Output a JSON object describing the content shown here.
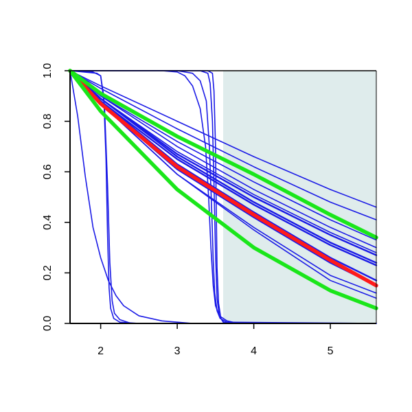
{
  "chart_data": {
    "type": "line",
    "title": "",
    "xlabel": "",
    "ylabel": "",
    "xlim": [
      1.6,
      5.6
    ],
    "ylim": [
      0.0,
      1.0
    ],
    "x_ticks": [
      2,
      3,
      4,
      5
    ],
    "x_tick_labels": [
      "2",
      "3",
      "4",
      "5"
    ],
    "y_ticks": [
      0.0,
      0.2,
      0.4,
      0.6,
      0.8,
      1.0
    ],
    "y_tick_labels": [
      "0.0",
      "0.2",
      "0.4",
      "0.6",
      "0.8",
      "1.0"
    ],
    "grid": false,
    "legend": "none",
    "shaded_region": {
      "x_from": 3.6,
      "x_to": 5.6,
      "color": "#dfecec"
    },
    "colors": {
      "blue": "#1a1ae6",
      "red": "#ff1a1a",
      "green": "#1ae61a",
      "axis": "#000000"
    },
    "series": [
      {
        "color": "blue",
        "weight": "thin",
        "x": [
          1.6,
          2.0,
          3.0,
          4.0,
          5.0,
          5.6
        ],
        "y": [
          1.0,
          0.94,
          0.8,
          0.66,
          0.53,
          0.46
        ]
      },
      {
        "color": "blue",
        "weight": "thin",
        "x": [
          1.6,
          2.0,
          3.0,
          4.0,
          5.0,
          5.6
        ],
        "y": [
          1.0,
          0.93,
          0.77,
          0.62,
          0.48,
          0.41
        ]
      },
      {
        "color": "blue",
        "weight": "thin",
        "x": [
          1.6,
          2.0,
          3.0,
          4.0,
          5.0,
          5.6
        ],
        "y": [
          1.0,
          0.9,
          0.72,
          0.56,
          0.41,
          0.33
        ]
      },
      {
        "color": "blue",
        "weight": "thin",
        "x": [
          1.6,
          2.0,
          3.0,
          4.0,
          5.0,
          5.6
        ],
        "y": [
          1.0,
          0.9,
          0.7,
          0.53,
          0.38,
          0.3
        ]
      },
      {
        "color": "blue",
        "weight": "thin",
        "x": [
          1.6,
          2.0,
          3.0,
          4.0,
          5.0,
          5.6
        ],
        "y": [
          1.0,
          0.89,
          0.68,
          0.51,
          0.36,
          0.28
        ]
      },
      {
        "color": "blue",
        "weight": "medium",
        "x": [
          1.6,
          2.0,
          3.0,
          4.0,
          5.0,
          5.6
        ],
        "y": [
          1.0,
          0.89,
          0.67,
          0.5,
          0.35,
          0.27
        ]
      },
      {
        "color": "blue",
        "weight": "medium",
        "x": [
          1.6,
          2.0,
          3.0,
          4.0,
          5.0,
          5.6
        ],
        "y": [
          1.0,
          0.89,
          0.66,
          0.48,
          0.32,
          0.24
        ]
      },
      {
        "color": "blue",
        "weight": "medium",
        "x": [
          1.6,
          2.0,
          3.0,
          4.0,
          5.0,
          5.6
        ],
        "y": [
          1.0,
          0.88,
          0.65,
          0.47,
          0.31,
          0.23
        ]
      },
      {
        "color": "blue",
        "weight": "medium",
        "x": [
          1.6,
          2.0,
          3.0,
          4.0,
          5.0,
          5.6
        ],
        "y": [
          1.0,
          0.88,
          0.63,
          0.44,
          0.26,
          0.17
        ]
      },
      {
        "color": "blue",
        "weight": "medium",
        "x": [
          1.6,
          2.0,
          3.0,
          4.0,
          5.0,
          5.6
        ],
        "y": [
          1.0,
          0.87,
          0.61,
          0.42,
          0.24,
          0.15
        ]
      },
      {
        "color": "blue",
        "weight": "thin",
        "x": [
          1.6,
          2.0,
          3.0,
          4.0,
          5.0,
          5.6
        ],
        "y": [
          1.0,
          0.87,
          0.59,
          0.38,
          0.19,
          0.12
        ]
      },
      {
        "color": "blue",
        "weight": "thin",
        "x": [
          1.6,
          2.0,
          3.0,
          4.0,
          5.0,
          5.6
        ],
        "y": [
          1.0,
          0.87,
          0.59,
          0.37,
          0.17,
          0.1
        ]
      },
      {
        "color": "blue",
        "weight": "thin",
        "x": [
          1.6,
          1.7,
          1.8,
          1.9,
          2.0,
          2.1,
          2.2,
          2.3,
          2.5,
          2.8,
          3.2,
          3.6,
          4.0,
          5.6
        ],
        "y": [
          1.0,
          0.82,
          0.58,
          0.38,
          0.26,
          0.17,
          0.11,
          0.07,
          0.03,
          0.01,
          0.0,
          0.0,
          0.0,
          0.0
        ]
      },
      {
        "color": "blue",
        "weight": "thin",
        "x": [
          1.6,
          1.95,
          2.0,
          2.04,
          2.07,
          2.09,
          2.11,
          2.13,
          2.17,
          2.25,
          2.5,
          3.0,
          5.6
        ],
        "y": [
          1.0,
          0.99,
          0.98,
          0.9,
          0.65,
          0.35,
          0.14,
          0.06,
          0.02,
          0.005,
          0.0,
          0.0,
          0.0
        ]
      },
      {
        "color": "blue",
        "weight": "thin",
        "x": [
          1.6,
          1.9,
          2.0,
          2.05,
          2.09,
          2.12,
          2.15,
          2.18,
          2.25,
          2.4,
          2.7,
          3.0,
          5.6
        ],
        "y": [
          1.0,
          0.995,
          0.98,
          0.86,
          0.55,
          0.24,
          0.09,
          0.04,
          0.015,
          0.0,
          0.0,
          0.0,
          0.0
        ]
      },
      {
        "color": "blue",
        "weight": "thin",
        "x": [
          1.6,
          2.8,
          3.0,
          3.1,
          3.2,
          3.3,
          3.37,
          3.41,
          3.44,
          3.47,
          3.5,
          3.55,
          3.65,
          3.8,
          5.6
        ],
        "y": [
          1.0,
          1.0,
          0.995,
          0.98,
          0.94,
          0.85,
          0.7,
          0.5,
          0.3,
          0.15,
          0.07,
          0.03,
          0.01,
          0.0,
          0.0
        ]
      },
      {
        "color": "blue",
        "weight": "thin",
        "x": [
          1.6,
          3.0,
          3.2,
          3.3,
          3.38,
          3.42,
          3.45,
          3.47,
          3.49,
          3.52,
          3.56,
          3.65,
          3.8,
          5.6
        ],
        "y": [
          1.0,
          1.0,
          0.99,
          0.96,
          0.88,
          0.7,
          0.45,
          0.25,
          0.12,
          0.05,
          0.02,
          0.005,
          0.0,
          0.0
        ]
      },
      {
        "color": "blue",
        "weight": "thin",
        "x": [
          1.6,
          3.3,
          3.4,
          3.43,
          3.46,
          3.48,
          3.5,
          3.52,
          3.55,
          3.6,
          5.6
        ],
        "y": [
          1.0,
          1.0,
          0.99,
          0.95,
          0.8,
          0.55,
          0.28,
          0.1,
          0.03,
          0.005,
          0.0
        ]
      },
      {
        "color": "blue",
        "weight": "thin",
        "x": [
          1.6,
          3.4,
          3.46,
          3.48,
          3.5,
          3.51,
          3.52,
          3.54,
          3.57,
          3.62,
          5.6
        ],
        "y": [
          1.0,
          1.0,
          0.99,
          0.92,
          0.7,
          0.45,
          0.22,
          0.08,
          0.02,
          0.0,
          0.0
        ]
      },
      {
        "color": "red",
        "weight": "bold",
        "x": [
          1.6,
          2.0,
          3.0,
          4.0,
          5.0,
          5.6
        ],
        "y": [
          1.0,
          0.87,
          0.62,
          0.43,
          0.25,
          0.15
        ]
      },
      {
        "color": "green",
        "weight": "bold",
        "x": [
          1.6,
          2.0,
          3.0,
          4.0,
          5.0,
          5.6
        ],
        "y": [
          1.0,
          0.91,
          0.74,
          0.59,
          0.43,
          0.34
        ]
      },
      {
        "color": "green",
        "weight": "bold",
        "x": [
          1.6,
          2.0,
          3.0,
          4.0,
          5.0,
          5.6
        ],
        "y": [
          1.0,
          0.84,
          0.53,
          0.3,
          0.13,
          0.06
        ]
      }
    ]
  }
}
